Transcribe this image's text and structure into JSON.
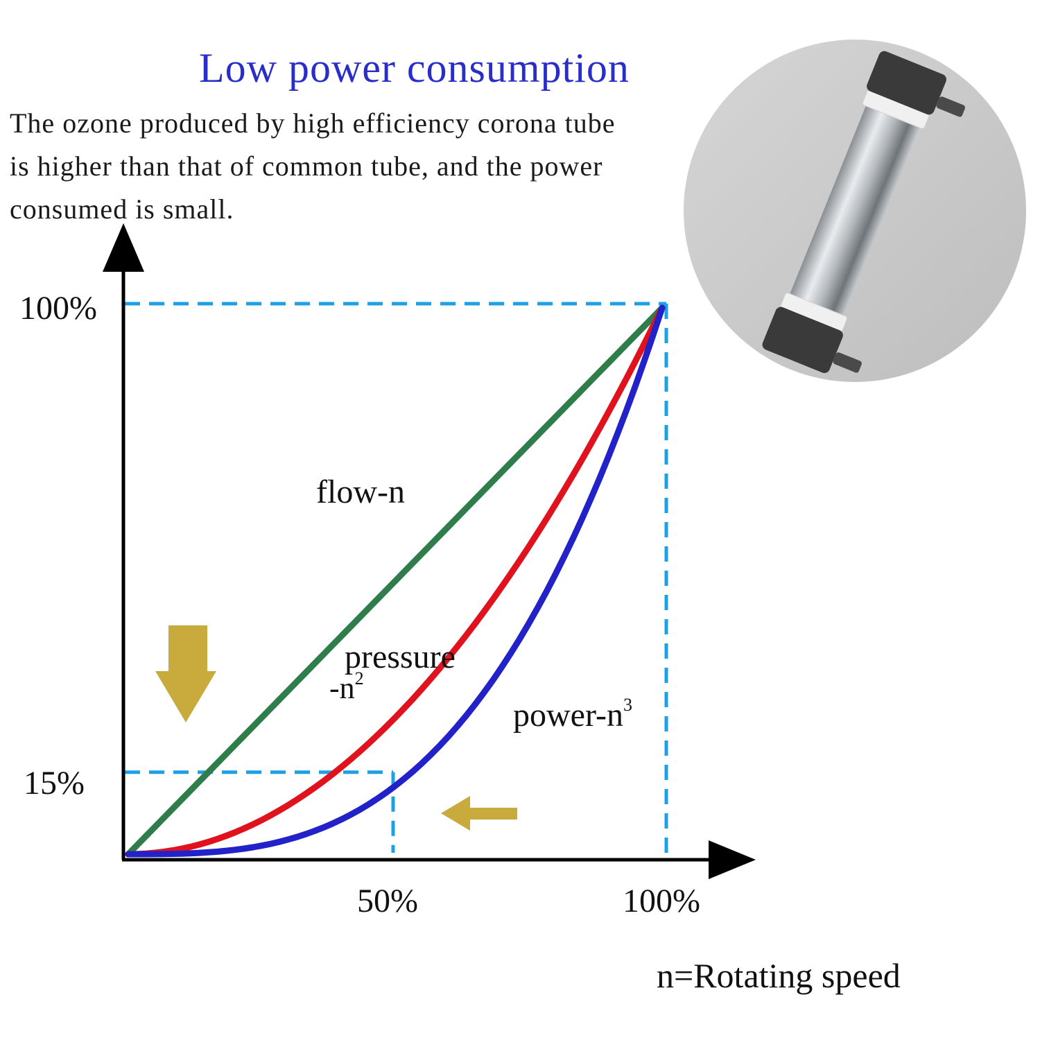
{
  "heading": "Low power consumption",
  "description": {
    "lines": [
      "The ozone produced by high efficiency corona tube",
      "is higher than that of common tube, and the power",
      "consumed is small."
    ]
  },
  "chart_data": {
    "type": "line",
    "x_tick_labels": [
      "50%",
      "100%"
    ],
    "y_tick_labels": [
      "15%",
      "100%"
    ],
    "x_axis_caption": "n=Rotating speed",
    "xlim": [
      0,
      1
    ],
    "ylim": [
      0,
      1
    ],
    "series": [
      {
        "name": "flow-n",
        "exponent": 1,
        "color": "#2e7d4a",
        "x": [
          0,
          0.25,
          0.5,
          0.75,
          1
        ],
        "y": [
          0,
          0.25,
          0.5,
          0.75,
          1
        ]
      },
      {
        "name": "pressure-n²",
        "label_main": "pressure",
        "label_sub": "-n",
        "label_sup": "2",
        "exponent": 2,
        "color": "#e0121e",
        "x": [
          0,
          0.25,
          0.5,
          0.75,
          1
        ],
        "y": [
          0,
          0.0625,
          0.25,
          0.5625,
          1
        ]
      },
      {
        "name": "power-n³",
        "label_main": "power-n",
        "label_sup": "3",
        "exponent": 3,
        "color": "#2222c8",
        "x": [
          0,
          0.25,
          0.5,
          0.75,
          1
        ],
        "y": [
          0,
          0.0156,
          0.125,
          0.4219,
          1
        ]
      }
    ],
    "reference_lines": [
      {
        "x": 1,
        "y": 1
      },
      {
        "x": 0.5,
        "y": 0.15
      }
    ],
    "grid": false,
    "reference_line_color": "#1ea0e6",
    "arrow_color": "#c9aa3c"
  },
  "product_image": {
    "label": "corona-tube-photo"
  }
}
